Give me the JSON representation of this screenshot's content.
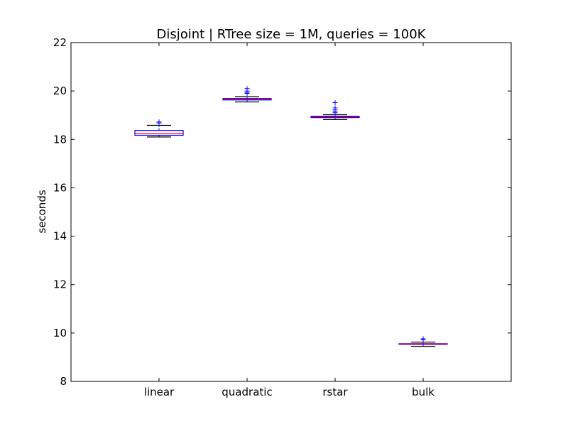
{
  "chart_data": {
    "type": "box",
    "title": "Disjoint | RTree size = 1M, queries = 100K",
    "xlabel": "",
    "ylabel": "seconds",
    "ylim": [
      8,
      22
    ],
    "yticks": [
      "8",
      "10",
      "12",
      "14",
      "16",
      "18",
      "20",
      "22"
    ],
    "categories": [
      "linear",
      "quadratic",
      "rstar",
      "bulk"
    ],
    "grid": false,
    "colors": {
      "box": "#0000ff",
      "median": "#ff0000",
      "whisker": "#000000",
      "flier": "#0000ff"
    },
    "boxes": [
      {
        "category": "linear",
        "whisker_low": 18.1,
        "q1": 18.17,
        "median": 18.25,
        "q3": 18.37,
        "whisker_high": 18.58,
        "fliers": [
          18.68,
          18.72
        ]
      },
      {
        "category": "quadratic",
        "whisker_low": 19.55,
        "q1": 19.63,
        "median": 19.66,
        "q3": 19.69,
        "whisker_high": 19.77,
        "fliers": [
          19.9,
          19.94,
          20.0,
          20.1
        ]
      },
      {
        "category": "rstar",
        "whisker_low": 18.82,
        "q1": 18.9,
        "median": 18.93,
        "q3": 18.96,
        "whisker_high": 19.02,
        "fliers": [
          19.1,
          19.15,
          19.22,
          19.3,
          19.52
        ]
      },
      {
        "category": "bulk",
        "whisker_low": 9.45,
        "q1": 9.53,
        "median": 9.55,
        "q3": 9.56,
        "whisker_high": 9.62,
        "fliers": [
          9.72,
          9.76
        ]
      }
    ]
  }
}
